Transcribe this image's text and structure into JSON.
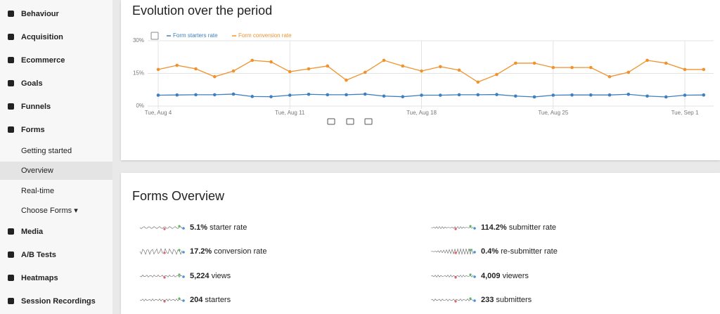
{
  "sidebar": {
    "items": [
      "Behaviour",
      "Acquisition",
      "Ecommerce",
      "Goals",
      "Funnels",
      "Forms"
    ],
    "subitems": [
      "Getting started",
      "Overview",
      "Real-time",
      "Choose Forms ▾"
    ],
    "after": [
      "Media",
      "A/B Tests",
      "Heatmaps",
      "Session Recordings"
    ]
  },
  "evolution": {
    "title": "Evolution over the period"
  },
  "chart_data": {
    "type": "line",
    "categories": [
      "Tue, Aug 4",
      null,
      null,
      null,
      null,
      null,
      null,
      "Tue, Aug 11",
      null,
      null,
      null,
      null,
      null,
      null,
      "Tue, Aug 18",
      null,
      null,
      null,
      null,
      null,
      null,
      "Tue, Aug 25",
      null,
      null,
      null,
      null,
      null,
      null,
      "Tue, Sep 1",
      null
    ],
    "series": [
      {
        "name": "Form starters rate",
        "color": "#3d7fbf",
        "values": [
          5.0,
          5.1,
          5.2,
          5.2,
          5.5,
          4.4,
          4.3,
          5.0,
          5.4,
          5.2,
          5.2,
          5.5,
          4.6,
          4.3,
          5.0,
          5.0,
          5.2,
          5.2,
          5.3,
          4.6,
          4.2,
          5.0,
          5.1,
          5.1,
          5.1,
          5.4,
          4.6,
          4.2,
          5.0,
          5.1
        ]
      },
      {
        "name": "Form conversion rate",
        "color": "#f0922e",
        "values": [
          16.8,
          18.7,
          17.1,
          13.5,
          16.1,
          21.0,
          20.3,
          15.8,
          17.1,
          18.4,
          11.9,
          15.5,
          21.0,
          18.4,
          16.1,
          18.1,
          16.5,
          11.0,
          14.5,
          19.7,
          19.7,
          17.7,
          17.7,
          17.7,
          13.5,
          15.5,
          21.0,
          19.7,
          16.8,
          16.8
        ]
      }
    ],
    "ylim": [
      0,
      30
    ],
    "yticks": [
      {
        "value": 0,
        "label": "0%"
      },
      {
        "value": 15,
        "label": "15%"
      },
      {
        "value": 30,
        "label": "30%"
      }
    ],
    "grid": true
  },
  "overview": {
    "title": "Forms Overview",
    "metrics": [
      {
        "value": "5.1%",
        "label": "starter rate"
      },
      {
        "value": "17.2%",
        "label": "conversion rate"
      },
      {
        "value": "5,224",
        "label": "views"
      },
      {
        "value": "204",
        "label": "starters"
      },
      {
        "value": "114.2%",
        "label": "submitter rate"
      },
      {
        "value": "0.4%",
        "label": "re-submitter rate"
      },
      {
        "value": "4,009",
        "label": "viewers"
      },
      {
        "value": "233",
        "label": "submitters"
      }
    ]
  }
}
